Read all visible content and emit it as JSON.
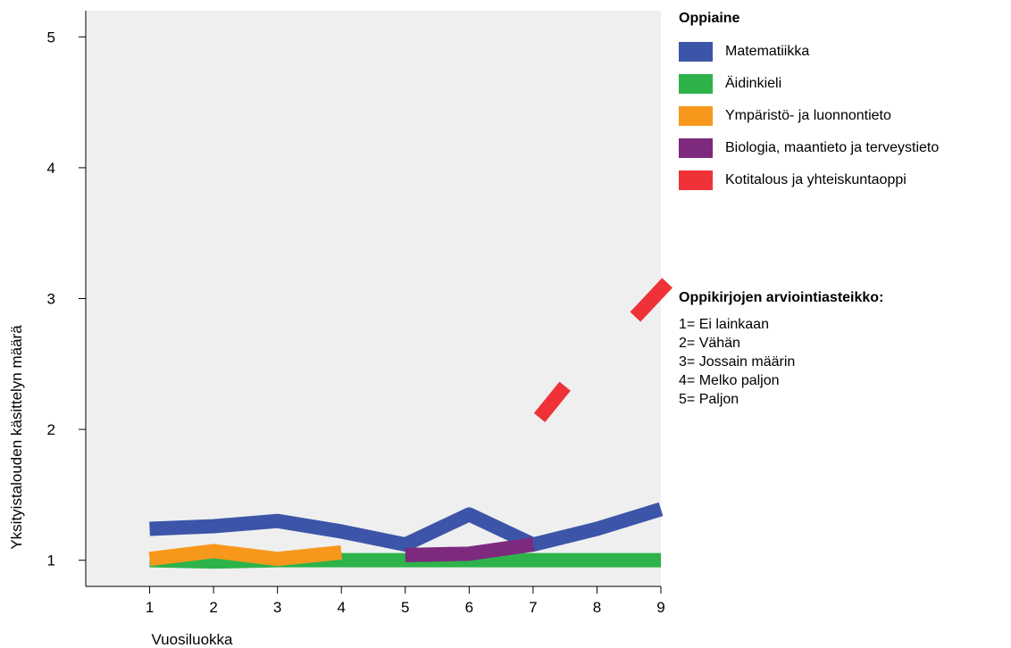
{
  "chart_data": {
    "type": "line",
    "xlabel": "Vuosiluokka",
    "ylabel": "Yksityistalouden käsittelyn määrä",
    "x": [
      1,
      2,
      3,
      4,
      5,
      6,
      7,
      8,
      9
    ],
    "xlim": [
      0,
      9
    ],
    "ylim": [
      0.8,
      5.2
    ],
    "yticks": [
      1,
      2,
      3,
      4,
      5
    ],
    "grid": false,
    "legend_title": "Oppiaine",
    "legend_position": "right",
    "series": [
      {
        "name": "Matematiikka",
        "color": "#3d55a8",
        "points": [
          [
            1,
            1.24
          ],
          [
            2,
            1.26
          ],
          [
            3,
            1.3
          ],
          [
            4,
            1.22
          ],
          [
            5,
            1.12
          ],
          [
            6,
            1.35
          ],
          [
            7,
            1.12
          ],
          [
            8,
            1.24
          ],
          [
            9,
            1.39
          ]
        ]
      },
      {
        "name": "Äidinkieli",
        "color": "#2db34a",
        "points": [
          [
            1,
            1.0
          ],
          [
            2,
            0.99
          ],
          [
            3,
            1.0
          ],
          [
            4,
            1.0
          ],
          [
            5,
            1.0
          ],
          [
            6,
            1.0
          ],
          [
            7,
            1.0
          ],
          [
            8,
            1.0
          ],
          [
            9,
            1.0
          ]
        ]
      },
      {
        "name": "Ympäristö- ja luonnontieto",
        "color": "#f7981d",
        "points": [
          [
            1,
            1.01
          ],
          [
            2,
            1.07
          ],
          [
            3,
            1.01
          ],
          [
            4,
            1.06
          ]
        ]
      },
      {
        "name": "Biologia, maantieto ja terveystieto",
        "color": "#7d2a7e",
        "points": [
          [
            5,
            1.04
          ],
          [
            6,
            1.05
          ],
          [
            7,
            1.12
          ]
        ]
      },
      {
        "name": "Kotitalous ja yhteiskuntaoppi",
        "color": "#ee3238",
        "segments": [
          [
            [
              7.1,
              2.09
            ],
            [
              7.5,
              2.33
            ]
          ],
          [
            [
              8.6,
              2.86
            ],
            [
              9.1,
              3.12
            ]
          ]
        ]
      }
    ]
  },
  "scale": {
    "title": "Oppikirjojen arviointiasteikko:",
    "items": [
      "1= Ei lainkaan",
      "2= Vähän",
      "3= Jossain määrin",
      "4= Melko paljon",
      "5= Paljon"
    ]
  }
}
